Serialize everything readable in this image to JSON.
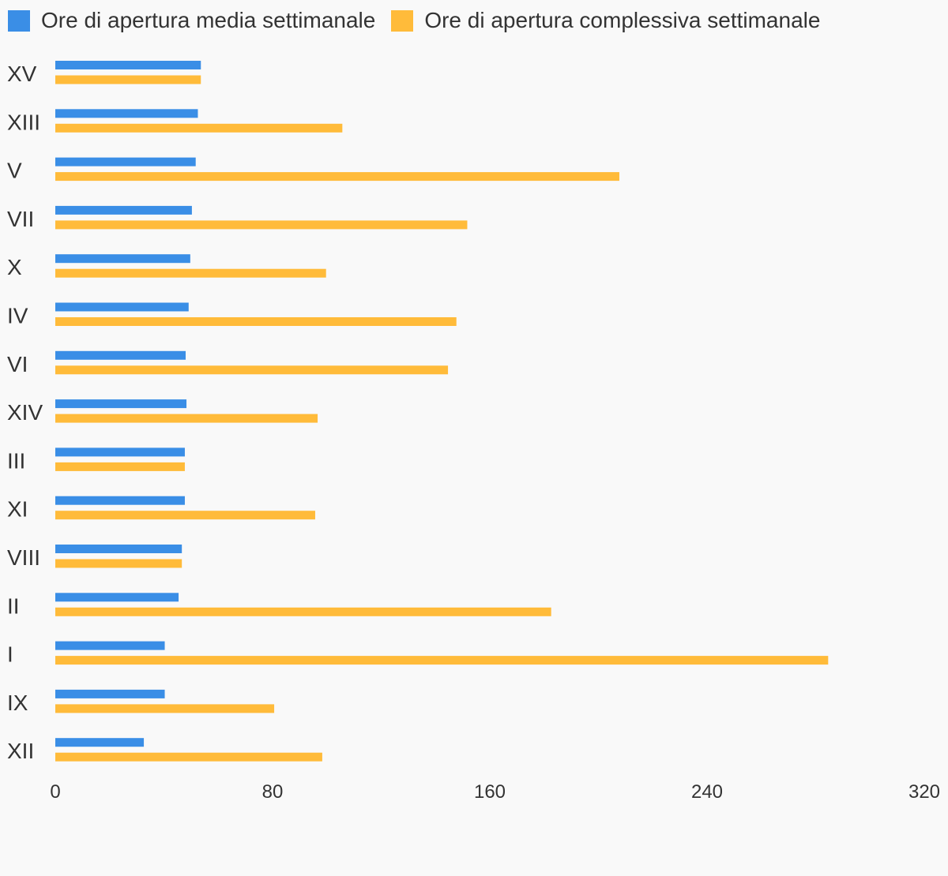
{
  "chart_data": {
    "type": "bar",
    "orientation": "horizontal",
    "categories": [
      "XV",
      "XIII",
      "V",
      "VII",
      "X",
      "IV",
      "VI",
      "XIV",
      "III",
      "XI",
      "VIII",
      "II",
      "I",
      "IX",
      "XII"
    ],
    "series": [
      {
        "name": "Ore di apertura media settimanale",
        "color": "#3a8ee6",
        "values": [
          53.6,
          52.5,
          51.7,
          50.3,
          49.7,
          49.1,
          48.0,
          48.3,
          47.7,
          47.7,
          46.6,
          45.4,
          40.3,
          40.3,
          32.6
        ]
      },
      {
        "name": "Ore di apertura complessiva settimanale",
        "color": "#ffbb3a",
        "values": [
          53.6,
          105.7,
          207.7,
          151.7,
          99.7,
          147.7,
          144.6,
          96.6,
          47.7,
          95.7,
          46.6,
          182.6,
          284.6,
          80.6,
          98.3
        ]
      }
    ],
    "xlim": [
      0,
      320
    ],
    "xticks": [
      "0",
      "80",
      "160",
      "240",
      "320"
    ],
    "grid": false,
    "legend": "top-left"
  }
}
